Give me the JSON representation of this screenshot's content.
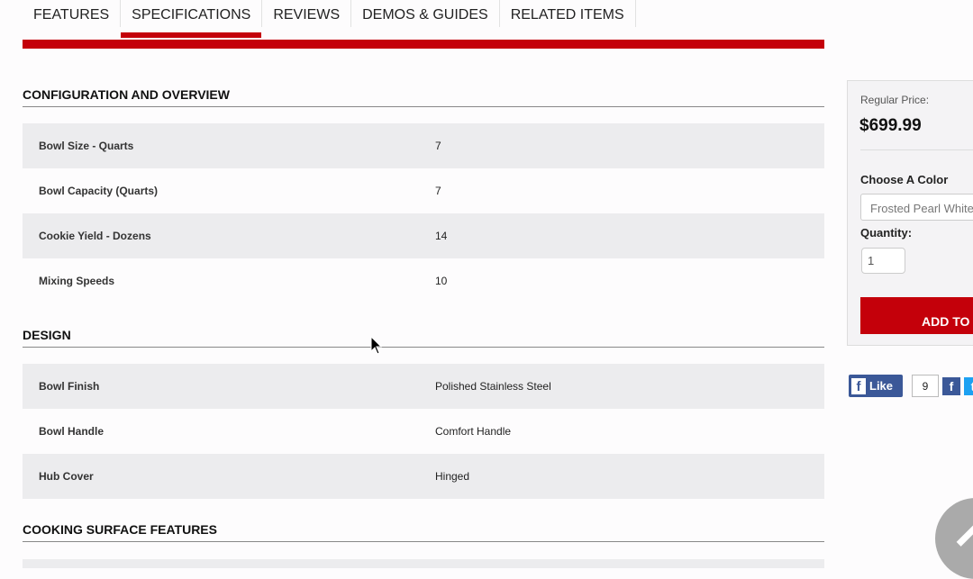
{
  "tabs": [
    "FEATURES",
    "SPECIFICATIONS",
    "REVIEWS",
    "DEMOS & GUIDES",
    "RELATED ITEMS"
  ],
  "active_tab": "SPECIFICATIONS",
  "sections": [
    {
      "title": "CONFIGURATION AND OVERVIEW",
      "rows": [
        [
          "Bowl Size - Quarts",
          "7"
        ],
        [
          "Bowl Capacity (Quarts)",
          "7"
        ],
        [
          "Cookie Yield - Dozens",
          "14"
        ],
        [
          "Mixing Speeds",
          "10"
        ]
      ]
    },
    {
      "title": "DESIGN",
      "rows": [
        [
          "Bowl Finish",
          "Polished Stainless Steel"
        ],
        [
          "Bowl Handle",
          "Comfort Handle"
        ],
        [
          "Hub Cover",
          "Hinged"
        ]
      ]
    },
    {
      "title": "COOKING SURFACE FEATURES",
      "rows": []
    }
  ],
  "panel": {
    "price_label": "Regular Price:",
    "price": "$699.99",
    "color_label": "Choose A Color",
    "color_value": "Frosted Pearl White",
    "qty_label": "Quantity:",
    "qty_value": "1",
    "add_label": "ADD TO CART"
  },
  "social": {
    "like_label": "Like",
    "like_count": "9"
  },
  "colors": {
    "accent": "#c4000a",
    "facebook": "#3b5898",
    "twitter": "#1da1f2"
  }
}
